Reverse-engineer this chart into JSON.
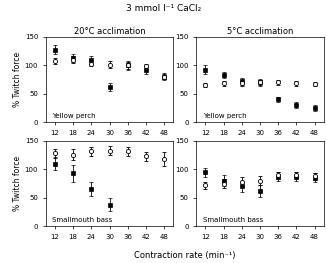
{
  "title": "3 mmol l⁻¹ CaCl₂",
  "x": [
    12,
    18,
    24,
    30,
    36,
    42,
    48
  ],
  "xlabel": "Contraction rate (min⁻¹)",
  "ylabel": "% Twitch force",
  "ylim": [
    0,
    150
  ],
  "yticks": [
    0,
    50,
    100,
    150
  ],
  "panels": [
    {
      "title": "20°C acclimation",
      "label": "Yellow perch",
      "filled": {
        "y": [
          127,
          112,
          110,
          62,
          100,
          92,
          80
        ],
        "yerr": [
          8,
          7,
          6,
          7,
          8,
          7,
          6
        ]
      },
      "open": {
        "y": [
          108,
          110,
          103,
          101,
          100,
          98,
          80
        ],
        "yerr": [
          5,
          6,
          5,
          6,
          6,
          5,
          5
        ]
      }
    },
    {
      "title": "5°C acclimation",
      "label": "Yellow perch",
      "filled": {
        "y": [
          92,
          83,
          72,
          70,
          40,
          30,
          25
        ],
        "yerr": [
          8,
          6,
          6,
          6,
          5,
          5,
          5
        ]
      },
      "open": {
        "y": [
          65,
          68,
          68,
          70,
          70,
          68,
          67
        ],
        "yerr": [
          4,
          4,
          4,
          4,
          4,
          4,
          4
        ]
      }
    },
    {
      "title": "",
      "label": "Smallmouth bass",
      "filled": {
        "y": [
          110,
          93,
          65,
          38,
          null,
          null,
          null
        ],
        "yerr": [
          12,
          15,
          12,
          12,
          null,
          null,
          null
        ]
      },
      "open": {
        "y": [
          128,
          126,
          132,
          133,
          132,
          123,
          118
        ],
        "yerr": [
          8,
          10,
          8,
          8,
          8,
          8,
          12
        ]
      }
    },
    {
      "title": "",
      "label": "Smallmouth bass",
      "filled": {
        "y": [
          95,
          80,
          70,
          62,
          87,
          87,
          85
        ],
        "yerr": [
          8,
          10,
          10,
          10,
          8,
          8,
          8
        ]
      },
      "open": {
        "y": [
          72,
          75,
          78,
          80,
          90,
          90,
          88
        ],
        "yerr": [
          6,
          8,
          8,
          8,
          6,
          6,
          6
        ]
      }
    }
  ],
  "marker_filled": "s",
  "marker_open": "o",
  "markersize": 3,
  "linewidth": 0.8,
  "color": "black"
}
